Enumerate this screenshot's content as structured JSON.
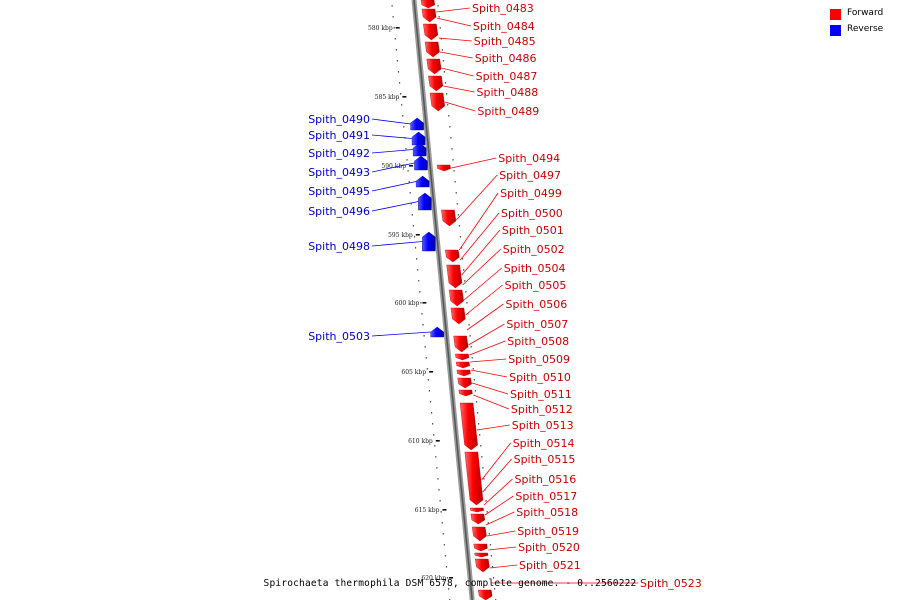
{
  "legend": {
    "forward": {
      "label": "Forward",
      "color": "#ff0000"
    },
    "reverse": {
      "label": "Reverse",
      "color": "#0000ff"
    }
  },
  "caption": "Spirochaeta thermophila DSM 6578, complete genome. - 0..2560222",
  "ticks": [
    "580 kbp",
    "585 kbp",
    "590 kbp",
    "595 kbp",
    "600 kbp",
    "605 kbp",
    "610 kbp",
    "615 kbp",
    "620 kbp"
  ],
  "genes_forward": [
    "Spith_0483",
    "Spith_0484",
    "Spith_0485",
    "Spith_0486",
    "Spith_0487",
    "Spith_0488",
    "Spith_0489",
    "Spith_0494",
    "Spith_0497",
    "Spith_0499",
    "Spith_0500",
    "Spith_0501",
    "Spith_0502",
    "Spith_0504",
    "Spith_0505",
    "Spith_0506",
    "Spith_0507",
    "Spith_0508",
    "Spith_0509",
    "Spith_0510",
    "Spith_0511",
    "Spith_0512",
    "Spith_0513",
    "Spith_0514",
    "Spith_0515",
    "Spith_0516",
    "Spith_0517",
    "Spith_0518",
    "Spith_0519",
    "Spith_0520",
    "Spith_0521",
    "Spith_0523"
  ],
  "genes_reverse": [
    "Spith_0490",
    "Spith_0491",
    "Spith_0492",
    "Spith_0493",
    "Spith_0495",
    "Spith_0496",
    "Spith_0498",
    "Spith_0503"
  ]
}
